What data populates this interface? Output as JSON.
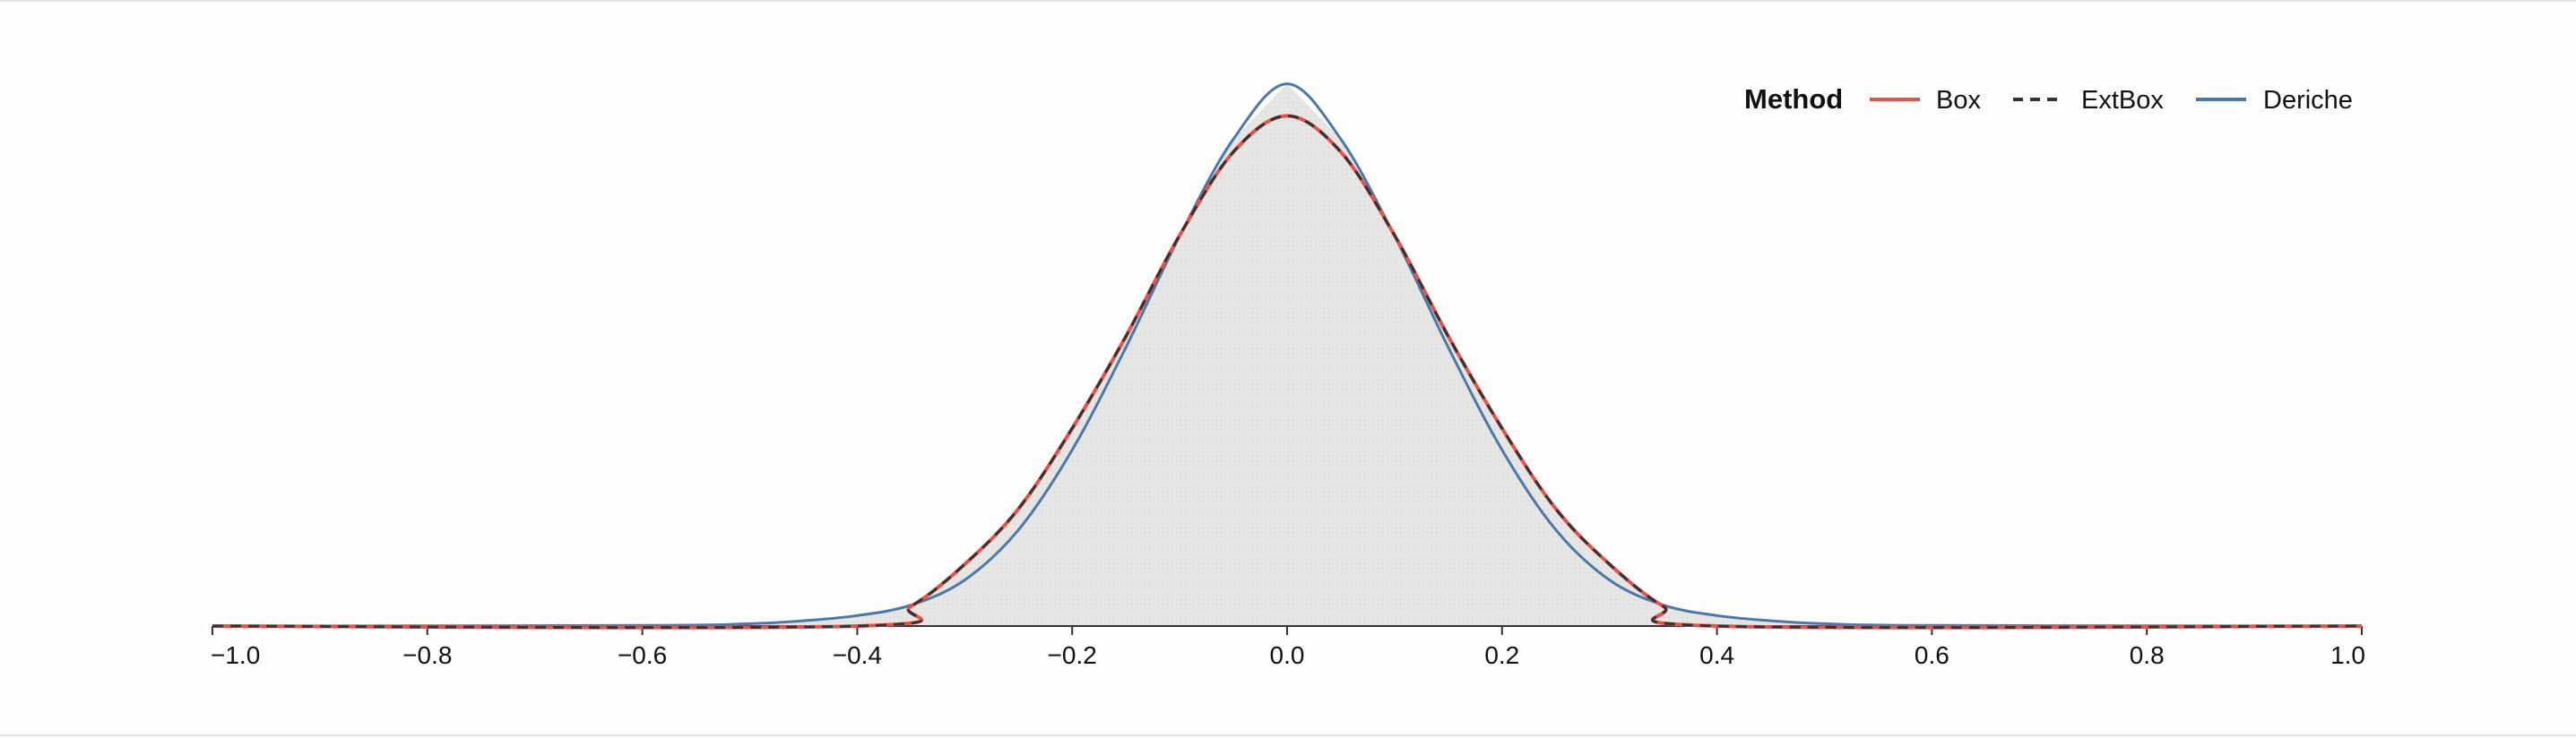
{
  "chart_data": {
    "type": "area",
    "xlim": [
      -1.0,
      1.0
    ],
    "ylim": [
      0,
      1.0
    ],
    "grid": false,
    "legend_position": "top-right",
    "legend": {
      "title": "Method",
      "entries": [
        {
          "name": "Box",
          "color": "#e8514b",
          "dash": "solid"
        },
        {
          "name": "ExtBox",
          "color": "#333333",
          "dash": "dashed"
        },
        {
          "name": "Deriche",
          "color": "#4a78a8",
          "dash": "solid"
        }
      ]
    },
    "fill_color": "#e6e6e4",
    "x_ticks": [
      -1.0,
      -0.8,
      -0.6,
      -0.4,
      -0.2,
      0.0,
      0.2,
      0.4,
      0.6,
      0.8,
      1.0
    ],
    "x_tick_labels": [
      "−1.0",
      "−0.8",
      "−0.6",
      "−0.4",
      "−0.2",
      "0.0",
      "0.2",
      "0.4",
      "0.6",
      "0.8",
      "1.0"
    ],
    "series": [
      {
        "name": "Box",
        "x": [
          -1.0,
          -0.4,
          -0.35,
          -0.3,
          -0.25,
          -0.2,
          -0.15,
          -0.1,
          -0.05,
          0.0,
          0.05,
          0.1,
          0.15,
          0.2,
          0.25,
          0.3,
          0.35,
          0.4,
          1.0
        ],
        "values": [
          0.0,
          0.0,
          0.034,
          0.106,
          0.201,
          0.339,
          0.497,
          0.67,
          0.813,
          0.875,
          0.813,
          0.67,
          0.497,
          0.339,
          0.201,
          0.106,
          0.034,
          0.0,
          0.0
        ]
      },
      {
        "name": "ExtBox",
        "x": [
          -1.0,
          -0.4,
          -0.35,
          -0.3,
          -0.25,
          -0.2,
          -0.15,
          -0.1,
          -0.05,
          0.0,
          0.05,
          0.1,
          0.15,
          0.2,
          0.25,
          0.3,
          0.35,
          0.4,
          1.0
        ],
        "values": [
          0.0,
          0.0,
          0.034,
          0.106,
          0.201,
          0.339,
          0.497,
          0.67,
          0.813,
          0.875,
          0.813,
          0.67,
          0.497,
          0.339,
          0.201,
          0.106,
          0.034,
          0.0,
          0.0
        ]
      },
      {
        "name": "Deriche",
        "x": [
          -1.0,
          -0.6,
          -0.5,
          -0.45,
          -0.4,
          -0.35,
          -0.3,
          -0.25,
          -0.2,
          -0.15,
          -0.1,
          -0.05,
          0.0,
          0.05,
          0.1,
          0.15,
          0.2,
          0.25,
          0.3,
          0.35,
          0.4,
          0.45,
          0.5,
          0.6,
          1.0
        ],
        "values": [
          0.0,
          0.001,
          0.004,
          0.009,
          0.018,
          0.036,
          0.079,
          0.165,
          0.302,
          0.478,
          0.669,
          0.835,
          0.93,
          0.835,
          0.669,
          0.478,
          0.302,
          0.165,
          0.079,
          0.036,
          0.018,
          0.009,
          0.004,
          0.001,
          0.0
        ]
      }
    ]
  }
}
